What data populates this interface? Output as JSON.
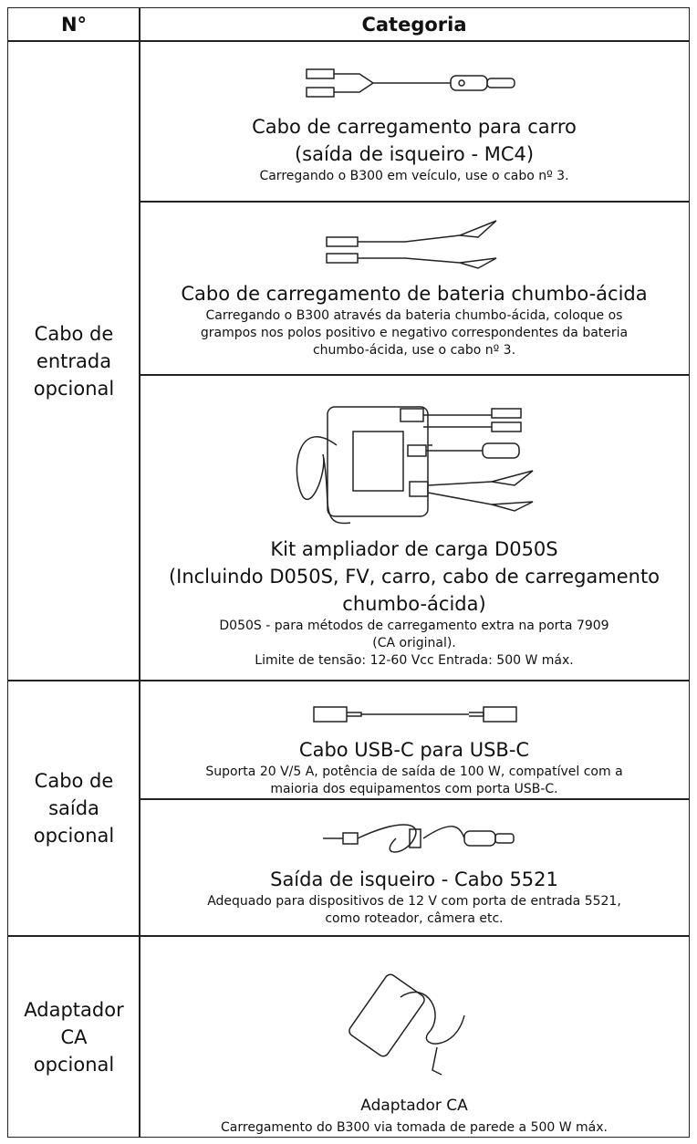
{
  "header": {
    "col1": "N°",
    "col2": "Categoria"
  },
  "groups": [
    {
      "label": [
        "Cabo de",
        "entrada",
        "opcional"
      ],
      "items": [
        {
          "title": [
            "Cabo de carregamento para carro",
            "(saída de isqueiro - MC4)"
          ],
          "description": [
            "Carregando o B300 em veículo, use o cabo nº 3."
          ]
        },
        {
          "title": [
            "Cabo de carregamento de bateria chumbo-ácida"
          ],
          "description": [
            "Carregando o B300 através da bateria chumbo-ácida, coloque os",
            "grampos nos polos positivo e negativo correspondentes da bateria",
            "chumbo-ácida, use o cabo nº 3."
          ]
        },
        {
          "title": [
            "Kit ampliador de carga D050S",
            "(Incluindo D050S, FV, carro, cabo de carregamento",
            "chumbo-ácida)"
          ],
          "description": [
            "D050S - para métodos de carregamento extra na porta 7909",
            "(CA original).",
            "Limite de tensão: 12-60 Vcc Entrada: 500 W máx."
          ]
        }
      ]
    },
    {
      "label": [
        "Cabo de",
        "saída",
        "opcional"
      ],
      "items": [
        {
          "title": [
            "Cabo USB-C para USB-C"
          ],
          "description": [
            "Suporta 20 V/5 A, potência de saída de 100 W, compatível com a",
            "maioria dos equipamentos com porta USB-C."
          ]
        },
        {
          "title": [
            "Saída de isqueiro - Cabo 5521"
          ],
          "description": [
            "Adequado para dispositivos de 12 V com porta de entrada 5521,",
            "como roteador, câmera etc."
          ]
        }
      ]
    },
    {
      "label": [
        "Adaptador",
        "CA",
        "opcional"
      ],
      "items": [
        {
          "title": [
            "Adaptador CA"
          ],
          "description": [
            "Carregamento do B300 via tomada de parede a 500 W máx."
          ]
        }
      ]
    }
  ]
}
